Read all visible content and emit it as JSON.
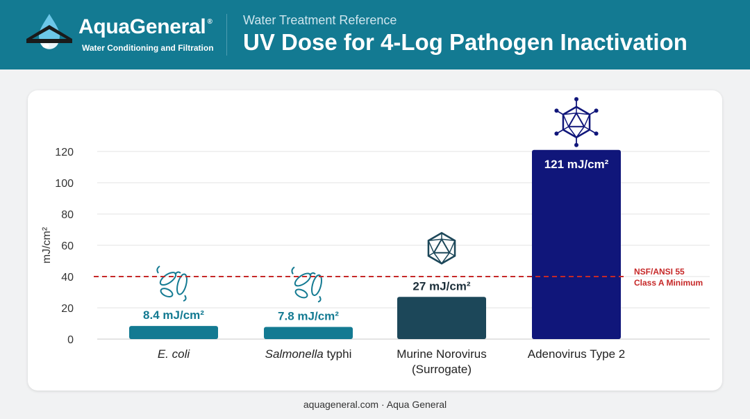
{
  "header": {
    "brand": "AquaGeneral",
    "brand_mark": "®",
    "tagline": "Water Conditioning and Filtration",
    "kicker": "Water Treatment Reference",
    "title": "UV Dose for 4-Log Pathogen Inactivation"
  },
  "footer": {
    "text": "aquageneral.com · Aqua General"
  },
  "colors": {
    "header_bg": "#137a92",
    "bar_teal": "#137a92",
    "bar_dark_slate": "#1c4759",
    "bar_navy": "#10167a",
    "reference_line": "#c62828"
  },
  "chart_data": {
    "type": "bar",
    "ylabel": "mJ/cm²",
    "ylim": [
      0,
      120
    ],
    "yticks": [
      0,
      20,
      40,
      60,
      80,
      100,
      120
    ],
    "grid": true,
    "categories": [
      {
        "label": "E. coli",
        "italic_part": "E. coli",
        "rest": "",
        "value": 8.4,
        "value_label": "8.4 mJ/cm²",
        "color": "#137a92",
        "icon": "bacteria-icon"
      },
      {
        "label": "Salmonella typhi",
        "italic_part": "Salmonella",
        "rest": " typhi",
        "value": 7.8,
        "value_label": "7.8 mJ/cm²",
        "color": "#137a92",
        "icon": "bacteria-icon"
      },
      {
        "label": "Murine Norovirus (Surrogate)",
        "line1": "Murine Norovirus",
        "line2": "(Surrogate)",
        "value": 27,
        "value_label": "27 mJ/cm²",
        "color": "#1c4759",
        "icon": "virus-icon"
      },
      {
        "label": "Adenovirus Type 2",
        "value": 121,
        "value_label": "121 mJ/cm²",
        "color": "#10167a",
        "icon": "adenovirus-icon",
        "label_inside": true
      }
    ],
    "reference_line": {
      "value": 40,
      "label_line1": "NSF/ANSI 55",
      "label_line2": "Class A Minimum"
    }
  }
}
